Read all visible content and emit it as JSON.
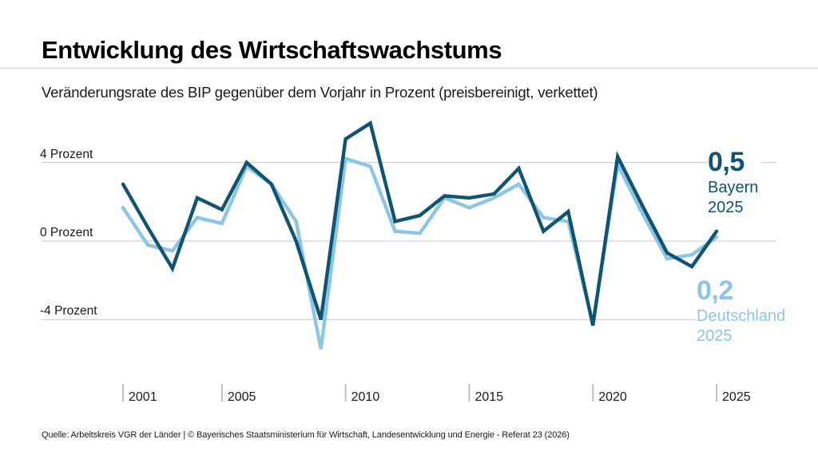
{
  "page": {
    "title": "Entwicklung des Wirtschaftswachstums",
    "subtitle": "Veränderungsrate des BIP gegenüber dem Vorjahr in Prozent (preisbereinigt, verkettet)",
    "footer": "Quelle: Arbeitskreis VGR der Länder | © Bayerisches Staatsministerium für Wirtschaft, Landesentwicklung und Energie - Referat 23 (2026)"
  },
  "colors": {
    "bayern": "#0f5470",
    "deutschland": "#8cc5e5",
    "gridline": "#c8c8c8",
    "tick": "#c0c0c0",
    "divider": "#d9d9d9"
  },
  "chart_data": {
    "type": "line",
    "title": "Entwicklung des Wirtschaftswachstums",
    "xlabel": "",
    "ylabel": "Veränderungsrate des BIP gegenüber dem Vorjahr in Prozent",
    "x": [
      2001,
      2002,
      2003,
      2004,
      2005,
      2006,
      2007,
      2008,
      2009,
      2010,
      2011,
      2012,
      2013,
      2014,
      2015,
      2016,
      2017,
      2018,
      2019,
      2020,
      2021,
      2022,
      2023,
      2024,
      2025
    ],
    "series": [
      {
        "name": "Bayern",
        "color": "#0f5470",
        "values": [
          2.9,
          0.7,
          -1.4,
          2.2,
          1.6,
          4.0,
          2.9,
          0.0,
          -4.0,
          5.2,
          6.0,
          1.0,
          1.3,
          2.3,
          2.2,
          2.4,
          3.7,
          0.5,
          1.5,
          -4.3,
          4.3,
          1.8,
          -0.6,
          -1.3,
          0.5
        ]
      },
      {
        "name": "Deutschland",
        "color": "#8cc5e5",
        "values": [
          1.7,
          -0.2,
          -0.5,
          1.2,
          0.9,
          3.8,
          2.9,
          1.0,
          -5.5,
          4.2,
          3.8,
          0.5,
          0.4,
          2.2,
          1.7,
          2.2,
          2.9,
          1.2,
          1.0,
          -4.2,
          3.9,
          1.4,
          -0.9,
          -0.7,
          0.2
        ]
      }
    ],
    "y_gridlines": [
      {
        "value": 4,
        "label": "4 Prozent"
      },
      {
        "value": 0,
        "label": "0 Prozent"
      },
      {
        "value": -4,
        "label": "-4 Prozent"
      }
    ],
    "x_ticks": [
      2001,
      2005,
      2010,
      2015,
      2020,
      2025
    ],
    "ylim": [
      -6.5,
      6.5
    ],
    "grid": "horizontal-only",
    "legend": "end-of-line-annotations"
  },
  "annotations": [
    {
      "value": "0,5",
      "region": "Bayern",
      "year": "2025",
      "color": "#0f5470"
    },
    {
      "value": "0,2",
      "region": "Deutschland",
      "year": "2025",
      "color": "#8cc5e5"
    }
  ]
}
